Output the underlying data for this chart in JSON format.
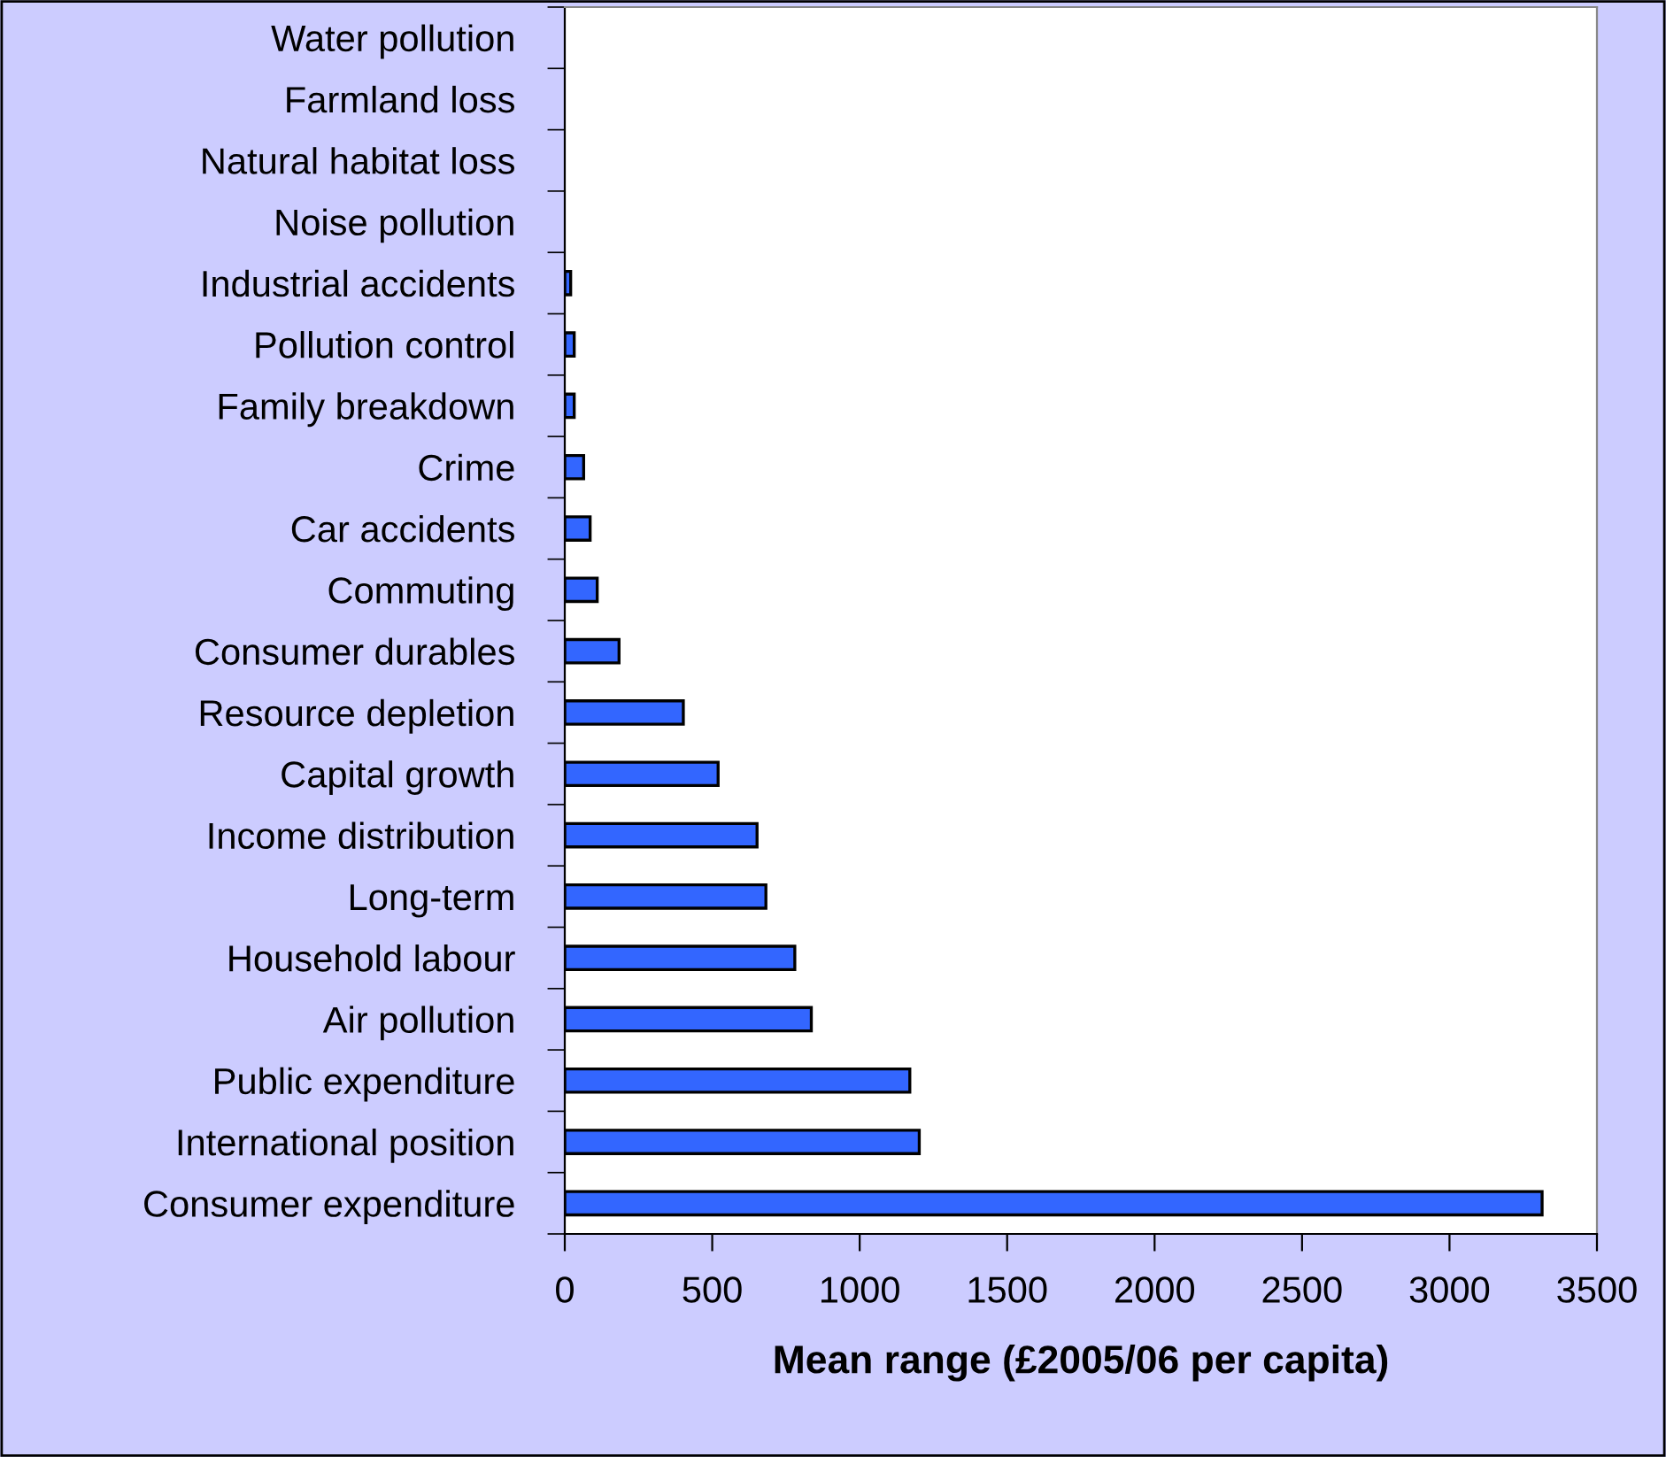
{
  "chart_data": {
    "type": "bar",
    "orientation": "horizontal",
    "xlabel": "Mean range (£2005/06 per capita)",
    "categories": [
      "Water pollution",
      "Farmland loss",
      "Natural habitat loss",
      "Noise pollution",
      "Industrial accidents",
      "Pollution control",
      "Family breakdown",
      "Crime",
      "Car accidents",
      "Commuting",
      "Consumer durables",
      "Resource depletion",
      "Capital growth",
      "Income distribution",
      "Long-term",
      "Household labour",
      "Air pollution",
      "Public expenditure",
      "International position",
      "Consumer expenditure"
    ],
    "values": [
      0,
      0,
      0,
      0,
      20,
      32,
      32,
      64,
      86,
      110,
      184,
      402,
      520,
      652,
      682,
      780,
      836,
      1170,
      1202,
      3314
    ],
    "color": "#3366ff",
    "xlim": [
      0,
      3500
    ],
    "xticks": [
      0,
      500,
      1000,
      1500,
      2000,
      2500,
      3000,
      3500
    ],
    "grid": false,
    "legend": false
  }
}
